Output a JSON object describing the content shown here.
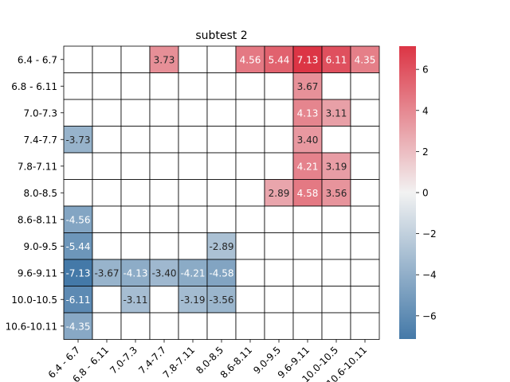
{
  "chart_data": {
    "type": "heatmap",
    "title": "subtest 2",
    "xlabel": "",
    "ylabel": "",
    "rows": [
      "6.4 - 6.7",
      "6.8 - 6.11",
      "7.0-7.3",
      "7.4-7.7",
      "7.8-7.11",
      "8.0-8.5",
      "8.6-8.11",
      "9.0-9.5",
      "9.6-9.11",
      "10.0-10.5",
      "10.6-10.11"
    ],
    "columns": [
      "6.4 - 6.7",
      "6.8 - 6.11",
      "7.0-7.3",
      "7.4-7.7",
      "7.8-7.11",
      "8.0-8.5",
      "8.6-8.11",
      "9.0-9.5",
      "9.6-9.11",
      "10.0-10.5",
      "10.6-10.11"
    ],
    "values": [
      [
        null,
        null,
        null,
        3.73,
        null,
        null,
        4.56,
        5.44,
        7.13,
        6.11,
        4.35
      ],
      [
        null,
        null,
        null,
        null,
        null,
        null,
        null,
        null,
        3.67,
        null,
        null
      ],
      [
        null,
        null,
        null,
        null,
        null,
        null,
        null,
        null,
        4.13,
        3.11,
        null
      ],
      [
        -3.73,
        null,
        null,
        null,
        null,
        null,
        null,
        null,
        3.4,
        null,
        null
      ],
      [
        null,
        null,
        null,
        null,
        null,
        null,
        null,
        null,
        4.21,
        3.19,
        null
      ],
      [
        null,
        null,
        null,
        null,
        null,
        null,
        null,
        2.89,
        4.58,
        3.56,
        null
      ],
      [
        -4.56,
        null,
        null,
        null,
        null,
        null,
        null,
        null,
        null,
        null,
        null
      ],
      [
        -5.44,
        null,
        null,
        null,
        null,
        -2.89,
        null,
        null,
        null,
        null,
        null
      ],
      [
        -7.13,
        -3.67,
        -4.13,
        -3.4,
        -4.21,
        -4.58,
        null,
        null,
        null,
        null,
        null
      ],
      [
        -6.11,
        null,
        -3.11,
        null,
        -3.19,
        -3.56,
        null,
        null,
        null,
        null,
        null
      ],
      [
        -4.35,
        null,
        null,
        null,
        null,
        null,
        null,
        null,
        null,
        null,
        null
      ]
    ],
    "labels": [
      [
        null,
        null,
        null,
        "3.73",
        null,
        null,
        "4.56",
        "5.44",
        "7.13",
        "6.11",
        "4.35"
      ],
      [
        null,
        null,
        null,
        null,
        null,
        null,
        null,
        null,
        "3.67",
        null,
        null
      ],
      [
        null,
        null,
        null,
        null,
        null,
        null,
        null,
        null,
        "4.13",
        "3.11",
        null
      ],
      [
        "-3.73",
        null,
        null,
        null,
        null,
        null,
        null,
        null,
        "3.40",
        null,
        null
      ],
      [
        null,
        null,
        null,
        null,
        null,
        null,
        null,
        null,
        "4.21",
        "3.19",
        null
      ],
      [
        null,
        null,
        null,
        null,
        null,
        null,
        null,
        "2.89",
        "4.58",
        "3.56",
        null
      ],
      [
        "-4.56",
        null,
        null,
        null,
        null,
        null,
        null,
        null,
        null,
        null,
        null
      ],
      [
        "-5.44",
        null,
        null,
        null,
        null,
        "-2.89",
        null,
        null,
        null,
        null,
        null
      ],
      [
        "-7.13",
        "-3.67",
        "-4.13",
        "-3.40",
        "-4.21",
        "-4.58",
        null,
        null,
        null,
        null,
        null
      ],
      [
        "-6.11",
        null,
        "-3.11",
        null,
        "-3.19",
        "-3.56",
        null,
        null,
        null,
        null,
        null
      ],
      [
        "-4.35",
        null,
        null,
        null,
        null,
        null,
        null,
        null,
        null,
        null,
        null
      ]
    ],
    "color_range": [
      -7.13,
      7.13
    ],
    "colorbar_ticks": [
      6,
      4,
      2,
      0,
      -2,
      -4,
      -6
    ],
    "colorbar_tick_labels": [
      "6",
      "4",
      "2",
      "0",
      "−2",
      "−4",
      "−6"
    ],
    "colors": {
      "negative": "#4479a8",
      "mid": "#f2f2f2",
      "positive": "#dc3545",
      "grid": "#000000",
      "empty": "#ffffff"
    },
    "x_tick_rotation": 45
  }
}
